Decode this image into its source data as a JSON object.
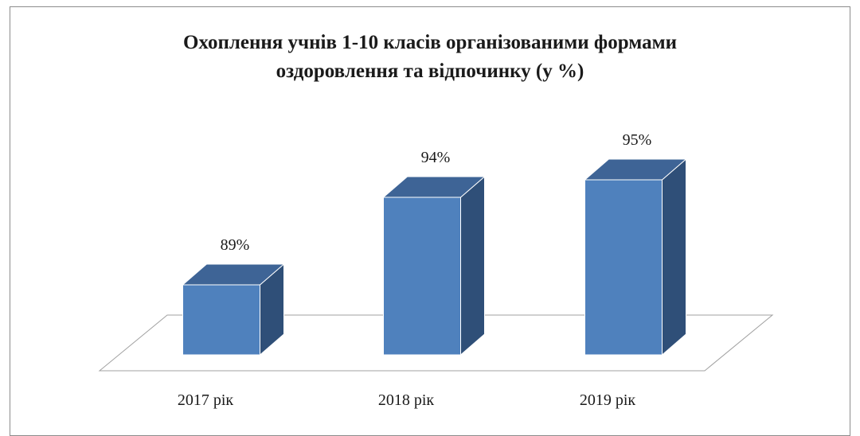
{
  "chart_data": {
    "type": "bar",
    "title_line1": "Охоплення учнів 1-10 класів організованими формами",
    "title_line2": "оздоровлення та відпочинку (у %)",
    "categories": [
      "2017  рік",
      "2018  рік",
      "2019  рік"
    ],
    "values": [
      89,
      94,
      95
    ],
    "value_labels": [
      "89%",
      "94%",
      "95%"
    ],
    "ylim": [
      85,
      96
    ],
    "grid": false,
    "legend": "none",
    "style": "3d-column"
  },
  "colors": {
    "bar_front": "#4f81bd",
    "bar_top": "#3e6496",
    "bar_side": "#2f4f78",
    "bar_edge": "#ffffff",
    "floor_line": "#a0a0a0",
    "text": "#1a1a1a"
  }
}
